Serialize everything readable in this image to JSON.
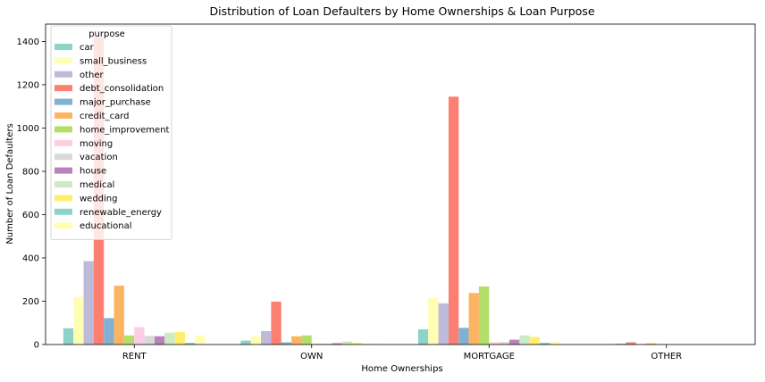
{
  "chart_data": {
    "type": "bar",
    "title": "Distribution of Loan Defaulters by Home Ownerships & Loan Purpose",
    "xlabel": "Home Ownerships",
    "ylabel": "Number of Loan Defaulters",
    "ylim": [
      0,
      1480
    ],
    "yticks": [
      0,
      200,
      400,
      600,
      800,
      1000,
      1200,
      1400
    ],
    "grid": false,
    "legend": {
      "title": "purpose",
      "position": "top-left"
    },
    "categories": [
      "RENT",
      "OWN",
      "MORTGAGE",
      "OTHER"
    ],
    "series": [
      {
        "name": "car",
        "color": "#8dd3c7",
        "values": [
          75,
          18,
          70,
          0
        ]
      },
      {
        "name": "small_business",
        "color": "#ffffb3",
        "values": [
          220,
          38,
          215,
          3
        ]
      },
      {
        "name": "other",
        "color": "#bebada",
        "values": [
          385,
          62,
          190,
          4
        ]
      },
      {
        "name": "debt_consolidation",
        "color": "#fb8072",
        "values": [
          1420,
          198,
          1145,
          10
        ]
      },
      {
        "name": "major_purchase",
        "color": "#80b1d3",
        "values": [
          122,
          10,
          77,
          1
        ]
      },
      {
        "name": "credit_card",
        "color": "#fdb462",
        "values": [
          272,
          38,
          238,
          5
        ]
      },
      {
        "name": "home_improvement",
        "color": "#b3de69",
        "values": [
          42,
          42,
          268,
          1
        ]
      },
      {
        "name": "moving",
        "color": "#fccde5",
        "values": [
          80,
          4,
          10,
          0
        ]
      },
      {
        "name": "vacation",
        "color": "#d9d9d9",
        "values": [
          40,
          4,
          12,
          0
        ]
      },
      {
        "name": "house",
        "color": "#bc80bd",
        "values": [
          38,
          6,
          22,
          0
        ]
      },
      {
        "name": "medical",
        "color": "#ccebc5",
        "values": [
          55,
          14,
          42,
          1
        ]
      },
      {
        "name": "wedding",
        "color": "#ffed6f",
        "values": [
          58,
          8,
          35,
          0
        ]
      },
      {
        "name": "renewable_energy",
        "color": "#8dd3c7",
        "values": [
          8,
          1,
          8,
          0
        ]
      },
      {
        "name": "educational",
        "color": "#ffffb3",
        "values": [
          43,
          3,
          14,
          0
        ]
      }
    ]
  }
}
